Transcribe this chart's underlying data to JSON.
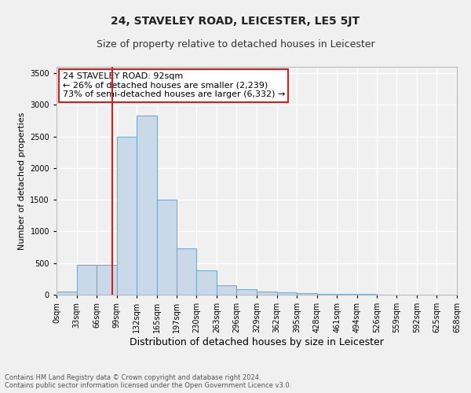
{
  "title": "24, STAVELEY ROAD, LEICESTER, LE5 5JT",
  "subtitle": "Size of property relative to detached houses in Leicester",
  "xlabel": "Distribution of detached houses by size in Leicester",
  "ylabel": "Number of detached properties",
  "bar_color": "#c9d9ea",
  "bar_edge_color": "#7aaac8",
  "bin_edges": [
    0,
    33,
    66,
    99,
    132,
    165,
    197,
    230,
    263,
    296,
    329,
    362,
    395,
    428,
    461,
    494,
    526,
    559,
    592,
    625,
    658
  ],
  "bar_heights": [
    50,
    470,
    470,
    2500,
    2830,
    1500,
    730,
    390,
    150,
    90,
    55,
    35,
    20,
    15,
    12,
    8,
    6,
    4,
    3,
    2
  ],
  "property_size": 92,
  "annotation_line1": "24 STAVELEY ROAD: 92sqm",
  "annotation_line2": "← 26% of detached houses are smaller (2,239)",
  "annotation_line3": "73% of semi-detached houses are larger (6,332) →",
  "annotation_box_color": "#ffffff",
  "annotation_box_edge": "#cc2222",
  "vline_color": "#cc2222",
  "vline_x": 92,
  "ylim": [
    0,
    3600
  ],
  "yticks": [
    0,
    500,
    1000,
    1500,
    2000,
    2500,
    3000,
    3500
  ],
  "xtick_labels": [
    "0sqm",
    "33sqm",
    "66sqm",
    "99sqm",
    "132sqm",
    "165sqm",
    "197sqm",
    "230sqm",
    "263sqm",
    "296sqm",
    "329sqm",
    "362sqm",
    "395sqm",
    "428sqm",
    "461sqm",
    "494sqm",
    "526sqm",
    "559sqm",
    "592sqm",
    "625sqm",
    "658sqm"
  ],
  "footer_text": "Contains HM Land Registry data © Crown copyright and database right 2024.\nContains public sector information licensed under the Open Government Licence v3.0.",
  "background_color": "#f0f0f0",
  "grid_color": "#ffffff",
  "title_fontsize": 10,
  "subtitle_fontsize": 9,
  "xlabel_fontsize": 9,
  "ylabel_fontsize": 8,
  "tick_fontsize": 7,
  "annotation_fontsize": 8,
  "footer_fontsize": 6
}
